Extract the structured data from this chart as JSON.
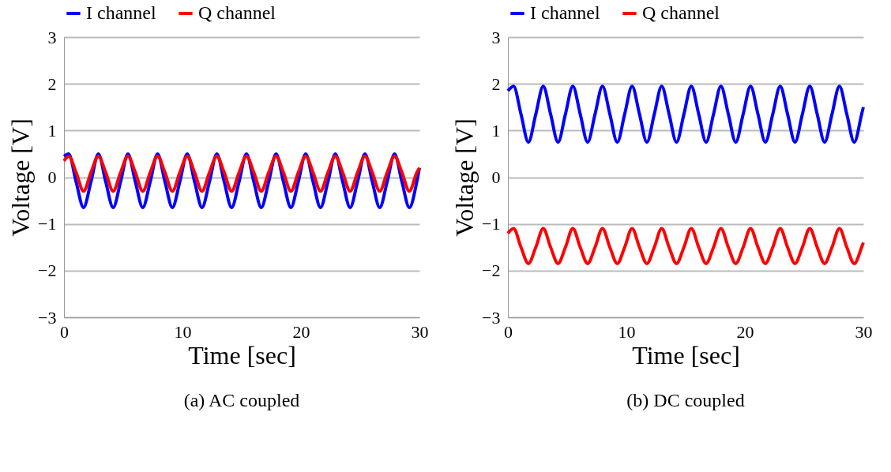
{
  "chart_data": [
    {
      "type": "line",
      "xlabel": "Time [sec]",
      "ylabel": "Voltage [V]",
      "annotations": [
        "(a) AC coupled"
      ],
      "xlim": [
        0,
        30
      ],
      "xticks": [
        0,
        10,
        20,
        30
      ],
      "ylim": [
        -3,
        3
      ],
      "yticks": [
        -3,
        -2,
        -1,
        0,
        1,
        2,
        3
      ],
      "grid": "y",
      "legend": "top",
      "marker": "none",
      "line_style": "solid",
      "x": [
        0,
        0.4,
        1.025,
        1.65,
        2.275,
        2.9,
        3.525,
        4.15,
        4.775,
        5.4,
        6.025,
        6.65,
        7.275,
        7.9,
        8.525,
        9.15,
        9.775,
        10.4,
        11.025,
        11.65,
        12.275,
        12.9,
        13.525,
        14.15,
        14.775,
        15.4,
        16.025,
        16.65,
        17.275,
        17.9,
        18.525,
        19.15,
        19.775,
        20.4,
        21.025,
        21.65,
        22.275,
        22.9,
        23.525,
        24.15,
        24.775,
        25.4,
        26.025,
        26.65,
        27.275,
        27.9,
        28.525,
        29.15,
        29.775,
        30
      ],
      "series": [
        {
          "name": "I channel",
          "color": "#0000ff",
          "values": [
            0.45,
            0.5,
            -0.1,
            -0.65,
            -0.1,
            0.5,
            -0.1,
            -0.65,
            -0.1,
            0.5,
            -0.1,
            -0.65,
            -0.1,
            0.5,
            -0.1,
            -0.65,
            -0.1,
            0.5,
            -0.1,
            -0.65,
            -0.1,
            0.5,
            -0.1,
            -0.65,
            -0.1,
            0.5,
            -0.1,
            -0.65,
            -0.1,
            0.5,
            -0.1,
            -0.65,
            -0.1,
            0.5,
            -0.1,
            -0.65,
            -0.1,
            0.5,
            -0.1,
            -0.65,
            -0.1,
            0.5,
            -0.1,
            -0.65,
            -0.1,
            0.5,
            -0.1,
            -0.65,
            -0.1,
            0.2
          ]
        },
        {
          "name": "Q channel",
          "color": "#ff0000",
          "values": [
            0.35,
            0.45,
            0.1,
            -0.3,
            0.1,
            0.45,
            0.1,
            -0.3,
            0.1,
            0.45,
            0.1,
            -0.3,
            0.1,
            0.45,
            0.1,
            -0.3,
            0.1,
            0.45,
            0.1,
            -0.3,
            0.1,
            0.45,
            0.1,
            -0.3,
            0.1,
            0.45,
            0.1,
            -0.3,
            0.1,
            0.45,
            0.1,
            -0.3,
            0.1,
            0.45,
            0.1,
            -0.3,
            0.1,
            0.45,
            0.1,
            -0.3,
            0.1,
            0.45,
            0.1,
            -0.3,
            0.1,
            0.45,
            0.1,
            -0.3,
            0.1,
            0.2
          ]
        }
      ]
    },
    {
      "type": "line",
      "xlabel": "Time [sec]",
      "ylabel": "Voltage [V]",
      "annotations": [
        "(b) DC coupled"
      ],
      "xlim": [
        0,
        30
      ],
      "xticks": [
        0,
        10,
        20,
        30
      ],
      "ylim": [
        -3,
        3
      ],
      "yticks": [
        -3,
        -2,
        -1,
        0,
        1,
        2,
        3
      ],
      "grid": "y",
      "legend": "top",
      "marker": "none",
      "line_style": "solid",
      "x": [
        0,
        0.48,
        1.105,
        1.73,
        2.355,
        2.98,
        3.605,
        4.23,
        4.855,
        5.48,
        6.105,
        6.73,
        7.355,
        7.98,
        8.605,
        9.23,
        9.855,
        10.48,
        11.105,
        11.73,
        12.355,
        12.98,
        13.605,
        14.23,
        14.855,
        15.48,
        16.105,
        16.73,
        17.355,
        17.98,
        18.605,
        19.23,
        19.855,
        20.48,
        21.105,
        21.73,
        22.355,
        22.98,
        23.605,
        24.23,
        24.855,
        25.48,
        26.105,
        26.73,
        27.355,
        27.98,
        28.605,
        29.23,
        29.855,
        30
      ],
      "series": [
        {
          "name": "I channel",
          "color": "#0000ff",
          "values": [
            1.85,
            1.95,
            1.35,
            0.75,
            1.35,
            1.95,
            1.35,
            0.75,
            1.35,
            1.95,
            1.35,
            0.75,
            1.35,
            1.95,
            1.35,
            0.75,
            1.35,
            1.95,
            1.35,
            0.75,
            1.35,
            1.95,
            1.35,
            0.75,
            1.35,
            1.95,
            1.35,
            0.75,
            1.35,
            1.95,
            1.35,
            0.75,
            1.35,
            1.95,
            1.35,
            0.75,
            1.35,
            1.95,
            1.35,
            0.75,
            1.35,
            1.95,
            1.35,
            0.75,
            1.35,
            1.95,
            1.35,
            0.75,
            1.35,
            1.5
          ]
        },
        {
          "name": "Q channel",
          "color": "#ff0000",
          "values": [
            -1.2,
            -1.1,
            -1.5,
            -1.85,
            -1.5,
            -1.1,
            -1.5,
            -1.85,
            -1.5,
            -1.1,
            -1.5,
            -1.85,
            -1.5,
            -1.1,
            -1.5,
            -1.85,
            -1.5,
            -1.1,
            -1.5,
            -1.85,
            -1.5,
            -1.1,
            -1.5,
            -1.85,
            -1.5,
            -1.1,
            -1.5,
            -1.85,
            -1.5,
            -1.1,
            -1.5,
            -1.85,
            -1.5,
            -1.1,
            -1.5,
            -1.85,
            -1.5,
            -1.1,
            -1.5,
            -1.85,
            -1.5,
            -1.1,
            -1.5,
            -1.85,
            -1.5,
            -1.1,
            -1.5,
            -1.85,
            -1.5,
            -1.4
          ]
        }
      ]
    }
  ]
}
